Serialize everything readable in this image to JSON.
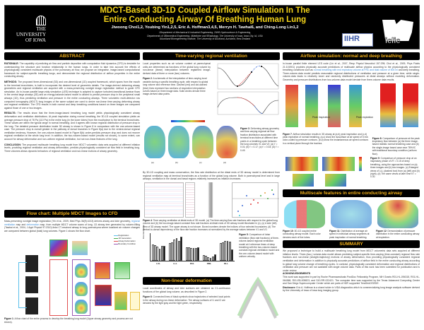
{
  "header": {
    "title_line1": "MDCT-Based 3D-1D Coupled Airflow Simulation In The",
    "title_line2": "Entire Conducting Airway Of Breathing Human Lung",
    "authors": "Jiwoong Choi1,2, Youbing Yin1,2,5, Eric A. Hoffman3,4,5, Merryn H. Tawhai6, and Ching-Long Lin1,2",
    "affil1": "1Department of Mechanical & Industrial Engineering, 2IIHR-Hydroscience & Engineering,",
    "affil2": "Departments of 3Biomedical Engineering, 4Medicine and 5Radiology, The University of Iowa, Iowa City, IA, USA",
    "affil3": "6Auckland Bioengineering Institute, The University of Auckland, Auckland, New Zealand",
    "logo_left": [
      "THE",
      "UNIVERSITY",
      "OF IOWA"
    ],
    "logo_ihr": "IIHR",
    "logo_iclic": "iclic"
  },
  "abstract": {
    "heading": "ABSTRACT",
    "rationale_label": "RATIONALE:",
    "rationale": "The capability of predicting air flow and particle deposition with computation fluid dynamics (CFD) is desirable for understanding the structure and function relationship in the human lungs. In order to take into account the effects of physiologically consistent multiscale physics of the pulmonary air flow, we propose an integrative, image-based computational framework for subject-specific breathing lungs, and demonstrate the regional distribution of airflow properties in the entire conducting airway.",
    "methods_label": "METHODS:",
    "methods": "The proposed three-dimensional (3D) and one-dimensional (1D) coupled framework, which spans from the mouth to the terminal bronchioles, is built to incorporate the desired level of geometric details. The image-derived deforming airway geometries and regional ventilation are acquired with a mass-preserving nonrigid image registration method to guide CFD simulation. An in-house parallel large-eddy simulation (LES) technique is adopted to capture turbulent-transitional-laminar flows in the central large airways (3D) and an energy-balance-based model is utilized to predict pressure drop in the peripheral small airways (1D), thus predicting ventilation and pressure in the entire conducting airways. Three volumetric multi-detector row computed tomography (MDCT) lung images of the same subject are used to derive non-linear time-varying deforming airway and regional ventilation. The CFD results in both normal and deep breathing conditions based on three images are compared against those of one or two images.",
    "results_label": "RESULTS:",
    "results": "The results show that the three-image-based breathing lung model yields physiologically consistent airway deformation and ventilation distributions. At peak inspiration during normal breathing, the 3D-1D coupled simulation yields an average pressure drop of 78 Pa (110 Pa) in the entire lung (in the lower lobes) from the mouthpiece to the terminal bronchioles. These values are within the typical range in normal breathing. And it agrees with known regional distribution of pressure drop in the lung. The detailed pressure distribution inside 3D airway is shown in Figure 8 in comparison with the one-volume-based case. The pressure drop is overall greater in the pathway of dorsal branches in Figure 8(a) due to the ventral-dorsal regional ventilation tendency. However, the one-volume-based model in Figure 8(b) under-predicts pressure drop and does not recover regional ventilation at the whole lung level. In addition, the two-volume-based model (results not shown), to some extent, can account for airway deformation and non-uniform regional ventilation, but not non-linear features of the lung.",
    "conclusion_label": "CONCLUSION:",
    "conclusion": "The proposed multiscale breathing lung model from MDCT volumetric data sets acquired at different inflation levels, providing regional ventilation and airway deformation, predicts physiologically consistent air flow field in breathing lung. Three volumes allows dynamic behaviors of regional ventilation and non-linear motions of airway geometry."
  },
  "flowchart": {
    "heading": "Flow chart: Multiple MDCT Images to CFD",
    "text_a": "Mass-preserving nonrigid image registration (Yin et al., 2009, Med Phys 36(9):4213) derives airway and lobe geometry, ",
    "link1": "regional ventilation",
    "text_b": " map and ",
    "link2": "deformation",
    "text_c": " map, from multiple MDCT volume scans of lung. 1D airway tree generated by volume-filling (Tawhai et al., 2004, J Appl Physiol 97:2310) links CT-resolved airway to lung parenchyma where localized air volume changes are compared between global (total) lung volumes. Figure 1 shows the flow chart.",
    "legend": [
      "Registration",
      "1D Generation",
      "Airway Deformation",
      "Boundary Condition"
    ],
    "legend_colors": [
      "#5bc0eb",
      "#4cae4c",
      "#e05050",
      "#9b59b6"
    ],
    "caption_label": "Figure 1",
    "caption": ": A flow chart of the entire process to develop the breathing lung model (Upper airway geometry and process are not shown)."
  },
  "ventilation": {
    "heading": "Time-varying regional ventilation",
    "intro": "Local properties such as air volume content at parenchymal units are determined as functions of the global lung volume by non-linear (linear) interpolation between registered image-derived data of three or more (two) volumes.",
    "fig2_label": "Figure 2",
    "fig2": ": A schematic of the interpolation of time-varying local variable during a specific breathing cycle, with respect to global lung volume and reference time. Dashed (red) and dot-dashed (blue) lines represent two sections of respective interpolation curves based on three image data. Solid circles denote three image-derived data points.",
    "fig3_label": "Figure 3",
    "fig3": ": Deforming airway geometry and time-varying regional air flow fraction distribution associated with terminal bronchioles at different time points in a breathing cycle between the lung volumes V1 and V2: (a) t' = 0.01; (b) t' = 0.17; (c) t' = 0.33; (d) t' = 0.49.",
    "fig3_panels": [
      "(a)",
      "(b)",
      "(c)",
      "(d)"
    ],
    "body": "By 3D-1D coupling and mass conservation, the flow rate distribution at the distal ends of 3D airway model is determined from regional ventilation map at terminal bronchioles as a function of the global lung volume. Both in parenchymal level and in large airways, ventilation in the dorsal and basal regions relatively increases as inflation increases.",
    "fig4_label": "Figure 4",
    "fig4": ": Time varying ventilation at distal ends of 3D model. (a) The time-varying flow rate fractions with respect to the global lung volume and (b) the two-image-based constant flow rate fractions at distal ends of 3D airway model illustrated in (c). (c) A side (left) view of 3D airway model. The upper airway is not shown. Boxed numbers denote the indices of four selected boundaries. (d) The ventral-to-dorsal dependency of the flow rate fraction increases at normalized by the average values between V1 and V2.",
    "fig5_label": "Figure 5",
    "fig5": ": Comparison of lobar ventilation (flow rate fractions) of three-volume-based regional ventilation model at 4 reference times of deep breathing with the two-volume-based constant regional ventilation model and the one-volume-based model with uniform velocity."
  },
  "chart_data": {
    "type": "bar",
    "title": "",
    "xlabel": "",
    "ylabel": "Flow rate fraction",
    "ylim": [
      0,
      0.4
    ],
    "yticks": [
      0,
      0.1,
      0.2,
      0.3,
      0.4
    ],
    "categories": [
      "LUL",
      "LLL",
      "RUL",
      "RML",
      "RLL"
    ],
    "legend_position": "top-right",
    "series": [
      {
        "name": "t'=0.01",
        "values": [
          0.23,
          0.25,
          0.19,
          0.08,
          0.25
        ]
      },
      {
        "name": "t'=0.17",
        "values": [
          0.225,
          0.26,
          0.19,
          0.075,
          0.26
        ]
      },
      {
        "name": "t'=0.33",
        "values": [
          0.2,
          0.3,
          0.185,
          0.055,
          0.28
        ]
      },
      {
        "name": "t'=0.49",
        "values": [
          0.175,
          0.32,
          0.18,
          0.045,
          0.285
        ]
      },
      {
        "name": "2 vol",
        "values": [
          0.21,
          0.28,
          0.185,
          0.065,
          0.27
        ]
      },
      {
        "name": "1 vol",
        "values": [
          0.21,
          0.345,
          0.19,
          0.09,
          0.16
        ]
      }
    ]
  },
  "nonlinear": {
    "heading": "Non-linear deformation",
    "body": "Local coordinates of airway and lobe surfaces are obtained as C1-continuous functions of the global lung volume, as described in Figure 2.",
    "fig6_label": "Figure 6",
    "fig6": ": Connected lines of black symbols show trajectories of selected local points in the airway during non-linear deformation. The airway surfaces of I1 and I2 are denoted by the light gray and the light green, respectively."
  },
  "airflow": {
    "heading": "Airflow simulation: normal and deep breathing",
    "text_a": "In-house parallel finite element LES code (Lin et al., 2007, Resp Physiol Neurobiol 157:295; Choi et al., 2009, Phys Fluids 21:101901) provides physically accurate predictions of multiscale airflow physics according to the physiologically consistent breathing conditions such as ",
    "link": "normal breathing with end expiratory volume at FRC and tidal volume of 500 ml",
    "text_b": " and deep breathing. Three-volume-data model predicts reasonable regional distributions of ventilation and pressure at a given time, while single-volume-data leads to relatively lower and randomly distributed pressures at distal airways without modeling deformation. Geometry and pressure distributions from two-volume-data model deviate from three-volume data results.",
    "peak_insp": "Peak inspiration",
    "peak_exp": "Peak expiration",
    "fig7_label": "Figure 7",
    "fig7": ": Airflow simulation results in 3D airway at (a,b) peak inspiration and (c,d) peak expiration of normal breathing. (a,c) show the isosurface at air speed of 5 m/s color-coded by pressure contours. (b,d) show the instantaneous air speed contours in a vertical plane through the trachea.",
    "fig8_label": "Figure 8",
    "fig8": ": Comparison of pressure at the peak inspiratory flow between (a) the three image-based realistic normal breathing case and (b) the single-image based case near 78%VC with traditional boundary condition (uniform flow).",
    "fig9_label": "Figure 9",
    "fig9": ": Comparison of pressure drop at an inspiratory phase of t/T = 0.15 of deep breathing, using the approaches based on (a) three images and (b) two images. (c) Enlarged views of LLL (dashed box) from (a) (left) and (b) (right). (d) The same views at later time t/T = 0.30.",
    "fig9_tags": [
      "t/T=0.15",
      "t/T=0.15",
      "t/T=0.30",
      "t/T=0.30"
    ],
    "colorbar_label": "Pressure, Pa"
  },
  "multiscale": {
    "heading": "Multiscale features in entire conducting airway",
    "fig10_label": "Figure 10",
    "fig10": ": 3D-1D coupled entire conducting airway model. Each color denotes each of five lobes.",
    "fig11_label": "Figure 11",
    "fig11": ": Distribution of average air speed in individual airway segments at peak inspiration of normal breathing.",
    "fig12_label": "Figure 12",
    "fig12": ": Demonstration of pressure distribution in the entire conducting airway at inspiration."
  },
  "summary": {
    "heading": "SUMMARY",
    "body": "We proposed a technique to build a multiscale breathing lung model from MDCT volumetric data sets acquired at different inflation levels. Three-(two-) volume-data model allows predicting subject-specific time-varying (time-constant) regional flow rate fractions and non-linear (straight-trajectory) motions of airway deformation, thus providing physiologically consistent regional ventilation and deformation in addition to physically accurate predictions of airflow field in the entire conducting airway according to global lung volume change of breathing cycles. In contrast, physiologically consistent deformation and regional distributions of ventilation and pressure are not available with single volume data. Parts of this work has been submitted for publication and is under review.",
    "ack_heading": "ACKNOWLEDGEMENTS",
    "ack": "This work was supported in part by Roche Pharmaceuticals PostDoc Fellowship Program, NIH Grants R01-HL-094315, R01-HL-064368, R01-EB-005823, and S10-RR-022421. The computer time was supported by the Texas Advanced Computing Center and San Diego Supercomputer Center which are parts of NSF-supported TeraGrid/XSEDE.",
    "disc_label": "Disclosure:",
    "disc": " Eric A. Hoffman is a share holder in VIDA diagnostics which is commercializing lung image analysis software derived by the University of Iowa of Iowa lung imaging group."
  }
}
